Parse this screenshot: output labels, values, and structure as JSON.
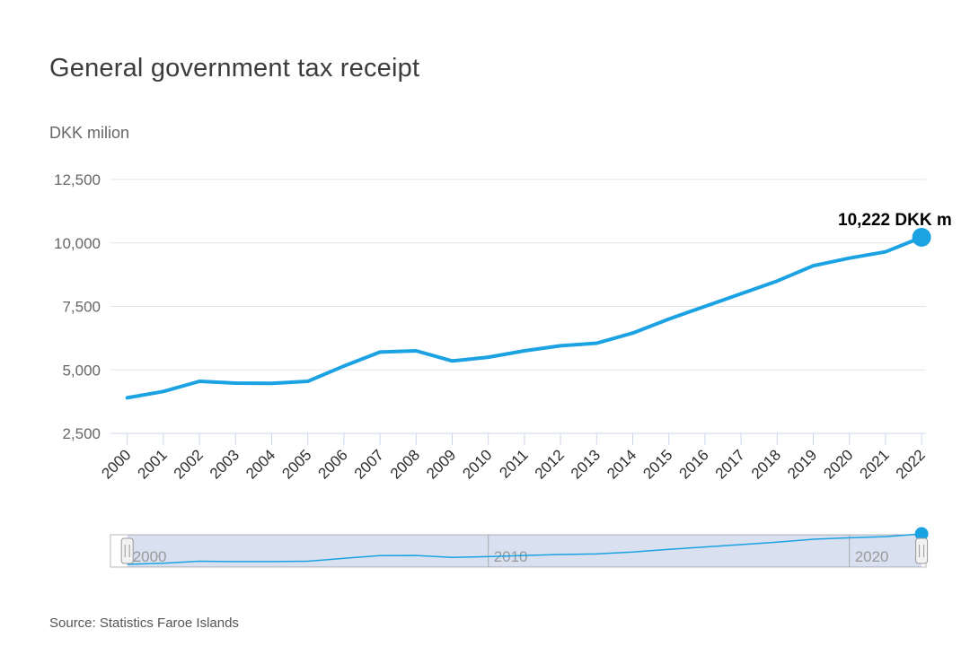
{
  "header": {
    "title": "General government tax receipt",
    "subtitle": "DKK milion"
  },
  "footer": {
    "source": "Source: Statistics Faroe Islands"
  },
  "chart_data": {
    "type": "line",
    "title": "General government tax receipt",
    "ylabel": "DKK milion",
    "xlabel": "",
    "legend": "none",
    "grid": true,
    "categories": [
      "2000",
      "2001",
      "2002",
      "2003",
      "2004",
      "2005",
      "2006",
      "2007",
      "2008",
      "2009",
      "2010",
      "2011",
      "2012",
      "2013",
      "2014",
      "2015",
      "2016",
      "2017",
      "2018",
      "2019",
      "2020",
      "2021",
      "2022"
    ],
    "series": [
      {
        "name": "General government tax receipt",
        "values": [
          3900,
          4150,
          4550,
          4480,
          4470,
          4550,
          5150,
          5700,
          5750,
          5350,
          5500,
          5750,
          5950,
          6050,
          6450,
          7000,
          7500,
          8000,
          8500,
          9100,
          9400,
          9650,
          10222
        ]
      }
    ],
    "ylim": [
      2500,
      12500
    ],
    "yticks": [
      12500,
      10000,
      7500,
      5000,
      2500
    ],
    "ytick_labels": [
      "12,500",
      "10,000",
      "7,500",
      "5,000",
      "2,500"
    ],
    "last_point": {
      "year": "2022",
      "value": 10222,
      "label": "10,222 DKK m"
    },
    "navigator": {
      "labels": [
        {
          "text": "2000",
          "year": "2000"
        },
        {
          "text": "2010",
          "year": "2010"
        },
        {
          "text": "2020",
          "year": "2020"
        }
      ],
      "selected_range": [
        "2000",
        "2022"
      ]
    },
    "colors": {
      "series": "#1ba2e2",
      "grid": "#e5e5e5",
      "axis": "#ccd6eb",
      "x_label": "#2e2e2e",
      "y_label": "#666666",
      "data_label": "#000000",
      "nav_mask": "rgba(102,133,194,0.25)",
      "nav_outline": "#b8b8b8",
      "nav_gridline": "#aaaaaa",
      "nav_label": "#999999",
      "handle_fill": "#f2f2f2",
      "handle_border": "#999999"
    }
  }
}
